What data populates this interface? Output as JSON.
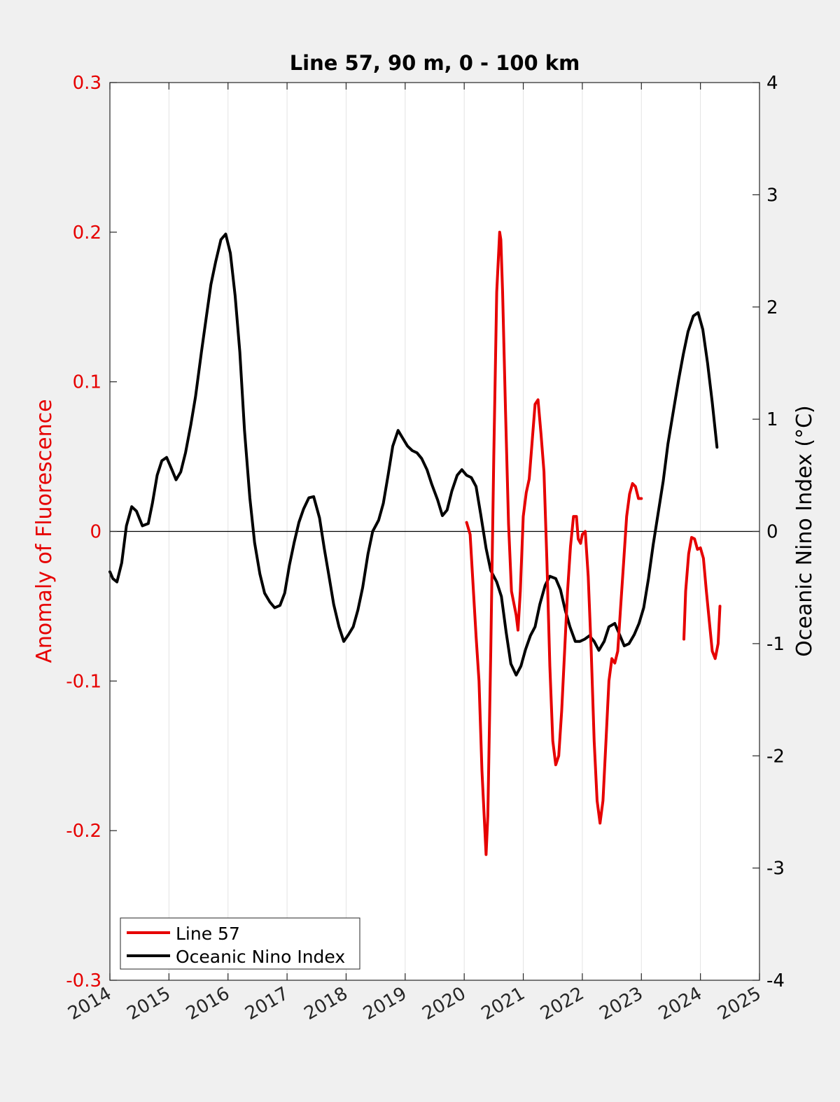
{
  "chart_data": {
    "type": "line",
    "title": "Line 57, 90 m, 0 - 100 km",
    "xlabel": "",
    "ylabel_left": "Anomaly of Fluorescence",
    "ylabel_right": "Oceanic Nino Index (°C)",
    "xlim": [
      2014,
      2025
    ],
    "ylim_left": [
      -0.3,
      0.3
    ],
    "ylim_right": [
      -4,
      4
    ],
    "x_ticks": [
      2014,
      2015,
      2016,
      2017,
      2018,
      2019,
      2020,
      2021,
      2022,
      2023,
      2024,
      2025
    ],
    "x_tick_labels": [
      "2014",
      "2015",
      "2016",
      "2017",
      "2018",
      "2019",
      "2020",
      "2021",
      "2022",
      "2023",
      "2024",
      "2025"
    ],
    "y_left_ticks": [
      -0.3,
      -0.2,
      -0.1,
      0,
      0.1,
      0.2,
      0.3
    ],
    "y_left_tick_labels": [
      "-0.3",
      "-0.2",
      "-0.1",
      "0",
      "0.1",
      "0.2",
      "0.3"
    ],
    "y_right_ticks": [
      -4,
      -3,
      -2,
      -1,
      0,
      1,
      2,
      3,
      4
    ],
    "y_right_tick_labels": [
      "-4",
      "-3",
      "-2",
      "-1",
      "0",
      "1",
      "2",
      "3",
      "4"
    ],
    "grid": "vertical x-grid",
    "legend_position": "bottom-left",
    "colors": {
      "line57": "#e60000",
      "oni": "#000000",
      "left_axis": "#e60000",
      "right_axis": "#000000"
    },
    "series": [
      {
        "name": "Line 57",
        "axis": "left",
        "color": "#e60000",
        "segments": [
          [
            [
              2020.04,
              0.006
            ],
            [
              2020.1,
              -0.002
            ],
            [
              2020.2,
              -0.07
            ],
            [
              2020.25,
              -0.1
            ],
            [
              2020.3,
              -0.16
            ],
            [
              2020.35,
              -0.2
            ],
            [
              2020.37,
              -0.216
            ],
            [
              2020.4,
              -0.19
            ],
            [
              2020.45,
              -0.08
            ],
            [
              2020.5,
              0.05
            ],
            [
              2020.55,
              0.16
            ],
            [
              2020.6,
              0.2
            ],
            [
              2020.62,
              0.195
            ],
            [
              2020.65,
              0.16
            ],
            [
              2020.7,
              0.08
            ],
            [
              2020.75,
              0.005
            ],
            [
              2020.8,
              -0.04
            ],
            [
              2020.85,
              -0.05
            ],
            [
              2020.88,
              -0.056
            ],
            [
              2020.91,
              -0.066
            ],
            [
              2020.95,
              -0.04
            ],
            [
              2021.0,
              0.01
            ],
            [
              2021.05,
              0.026
            ],
            [
              2021.1,
              0.035
            ],
            [
              2021.15,
              0.06
            ],
            [
              2021.2,
              0.085
            ],
            [
              2021.25,
              0.088
            ],
            [
              2021.3,
              0.065
            ],
            [
              2021.35,
              0.04
            ],
            [
              2021.4,
              -0.02
            ],
            [
              2021.45,
              -0.09
            ],
            [
              2021.5,
              -0.14
            ],
            [
              2021.55,
              -0.156
            ],
            [
              2021.6,
              -0.15
            ],
            [
              2021.65,
              -0.12
            ],
            [
              2021.7,
              -0.08
            ],
            [
              2021.75,
              -0.04
            ],
            [
              2021.8,
              -0.01
            ],
            [
              2021.85,
              0.01
            ],
            [
              2021.9,
              0.01
            ],
            [
              2021.93,
              -0.005
            ],
            [
              2021.97,
              -0.008
            ],
            [
              2022.0,
              -0.002
            ],
            [
              2022.05,
              0.0
            ],
            [
              2022.1,
              -0.03
            ],
            [
              2022.15,
              -0.08
            ],
            [
              2022.2,
              -0.14
            ],
            [
              2022.25,
              -0.18
            ],
            [
              2022.3,
              -0.195
            ],
            [
              2022.35,
              -0.18
            ],
            [
              2022.4,
              -0.14
            ],
            [
              2022.45,
              -0.1
            ],
            [
              2022.5,
              -0.085
            ],
            [
              2022.55,
              -0.088
            ],
            [
              2022.6,
              -0.08
            ],
            [
              2022.65,
              -0.05
            ],
            [
              2022.7,
              -0.02
            ],
            [
              2022.75,
              0.01
            ],
            [
              2022.8,
              0.025
            ],
            [
              2022.85,
              0.032
            ],
            [
              2022.9,
              0.03
            ],
            [
              2022.95,
              0.022
            ],
            [
              2023.0,
              0.022
            ]
          ],
          [
            [
              2023.72,
              -0.072
            ],
            [
              2023.75,
              -0.04
            ],
            [
              2023.8,
              -0.015
            ],
            [
              2023.85,
              -0.004
            ],
            [
              2023.9,
              -0.005
            ],
            [
              2023.95,
              -0.012
            ],
            [
              2024.0,
              -0.011
            ],
            [
              2024.05,
              -0.018
            ],
            [
              2024.1,
              -0.04
            ],
            [
              2024.15,
              -0.06
            ],
            [
              2024.2,
              -0.08
            ],
            [
              2024.25,
              -0.085
            ],
            [
              2024.3,
              -0.075
            ],
            [
              2024.33,
              -0.05
            ]
          ]
        ]
      },
      {
        "name": "Oceanic Nino Index",
        "axis": "right",
        "color": "#000000",
        "segments": [
          [
            [
              2014.0,
              -0.36
            ],
            [
              2014.05,
              -0.42
            ],
            [
              2014.12,
              -0.45
            ],
            [
              2014.2,
              -0.28
            ],
            [
              2014.28,
              0.05
            ],
            [
              2014.37,
              0.22
            ],
            [
              2014.45,
              0.18
            ],
            [
              2014.55,
              0.05
            ],
            [
              2014.65,
              0.07
            ],
            [
              2014.72,
              0.25
            ],
            [
              2014.8,
              0.5
            ],
            [
              2014.88,
              0.63
            ],
            [
              2014.96,
              0.66
            ],
            [
              2015.05,
              0.55
            ],
            [
              2015.12,
              0.46
            ],
            [
              2015.2,
              0.53
            ],
            [
              2015.28,
              0.7
            ],
            [
              2015.37,
              0.95
            ],
            [
              2015.45,
              1.2
            ],
            [
              2015.55,
              1.6
            ],
            [
              2015.63,
              1.9
            ],
            [
              2015.71,
              2.2
            ],
            [
              2015.79,
              2.4
            ],
            [
              2015.88,
              2.6
            ],
            [
              2015.96,
              2.65
            ],
            [
              2016.04,
              2.48
            ],
            [
              2016.12,
              2.1
            ],
            [
              2016.2,
              1.6
            ],
            [
              2016.28,
              0.9
            ],
            [
              2016.37,
              0.3
            ],
            [
              2016.45,
              -0.1
            ],
            [
              2016.54,
              -0.38
            ],
            [
              2016.62,
              -0.55
            ],
            [
              2016.71,
              -0.63
            ],
            [
              2016.79,
              -0.68
            ],
            [
              2016.88,
              -0.66
            ],
            [
              2016.96,
              -0.55
            ],
            [
              2017.04,
              -0.3
            ],
            [
              2017.12,
              -0.1
            ],
            [
              2017.2,
              0.08
            ],
            [
              2017.28,
              0.2
            ],
            [
              2017.37,
              0.3
            ],
            [
              2017.45,
              0.31
            ],
            [
              2017.55,
              0.12
            ],
            [
              2017.63,
              -0.15
            ],
            [
              2017.71,
              -0.4
            ],
            [
              2017.79,
              -0.65
            ],
            [
              2017.88,
              -0.85
            ],
            [
              2017.96,
              -0.98
            ],
            [
              2018.04,
              -0.92
            ],
            [
              2018.12,
              -0.85
            ],
            [
              2018.2,
              -0.7
            ],
            [
              2018.28,
              -0.5
            ],
            [
              2018.37,
              -0.2
            ],
            [
              2018.45,
              0.0
            ],
            [
              2018.55,
              0.1
            ],
            [
              2018.63,
              0.25
            ],
            [
              2018.71,
              0.5
            ],
            [
              2018.79,
              0.76
            ],
            [
              2018.88,
              0.9
            ],
            [
              2018.96,
              0.83
            ],
            [
              2019.04,
              0.76
            ],
            [
              2019.12,
              0.72
            ],
            [
              2019.2,
              0.7
            ],
            [
              2019.28,
              0.65
            ],
            [
              2019.37,
              0.55
            ],
            [
              2019.45,
              0.42
            ],
            [
              2019.55,
              0.28
            ],
            [
              2019.63,
              0.14
            ],
            [
              2019.71,
              0.19
            ],
            [
              2019.79,
              0.36
            ],
            [
              2019.88,
              0.5
            ],
            [
              2019.96,
              0.55
            ],
            [
              2020.04,
              0.5
            ],
            [
              2020.12,
              0.48
            ],
            [
              2020.2,
              0.4
            ],
            [
              2020.28,
              0.15
            ],
            [
              2020.37,
              -0.15
            ],
            [
              2020.45,
              -0.35
            ],
            [
              2020.55,
              -0.45
            ],
            [
              2020.63,
              -0.58
            ],
            [
              2020.71,
              -0.9
            ],
            [
              2020.79,
              -1.18
            ],
            [
              2020.88,
              -1.28
            ],
            [
              2020.96,
              -1.2
            ],
            [
              2021.04,
              -1.05
            ],
            [
              2021.12,
              -0.93
            ],
            [
              2021.2,
              -0.85
            ],
            [
              2021.28,
              -0.65
            ],
            [
              2021.37,
              -0.48
            ],
            [
              2021.45,
              -0.4
            ],
            [
              2021.55,
              -0.42
            ],
            [
              2021.63,
              -0.52
            ],
            [
              2021.71,
              -0.7
            ],
            [
              2021.79,
              -0.85
            ],
            [
              2021.88,
              -0.98
            ],
            [
              2021.96,
              -0.98
            ],
            [
              2022.04,
              -0.96
            ],
            [
              2022.12,
              -0.93
            ],
            [
              2022.2,
              -0.98
            ],
            [
              2022.28,
              -1.06
            ],
            [
              2022.37,
              -0.98
            ],
            [
              2022.45,
              -0.85
            ],
            [
              2022.55,
              -0.82
            ],
            [
              2022.63,
              -0.92
            ],
            [
              2022.71,
              -1.02
            ],
            [
              2022.79,
              -1.0
            ],
            [
              2022.88,
              -0.92
            ],
            [
              2022.96,
              -0.82
            ],
            [
              2023.04,
              -0.68
            ],
            [
              2023.12,
              -0.42
            ],
            [
              2023.2,
              -0.12
            ],
            [
              2023.28,
              0.15
            ],
            [
              2023.37,
              0.45
            ],
            [
              2023.45,
              0.78
            ],
            [
              2023.55,
              1.1
            ],
            [
              2023.63,
              1.35
            ],
            [
              2023.71,
              1.58
            ],
            [
              2023.79,
              1.78
            ],
            [
              2023.88,
              1.92
            ],
            [
              2023.96,
              1.95
            ],
            [
              2024.04,
              1.8
            ],
            [
              2024.12,
              1.5
            ],
            [
              2024.2,
              1.15
            ],
            [
              2024.28,
              0.75
            ]
          ]
        ]
      }
    ]
  }
}
